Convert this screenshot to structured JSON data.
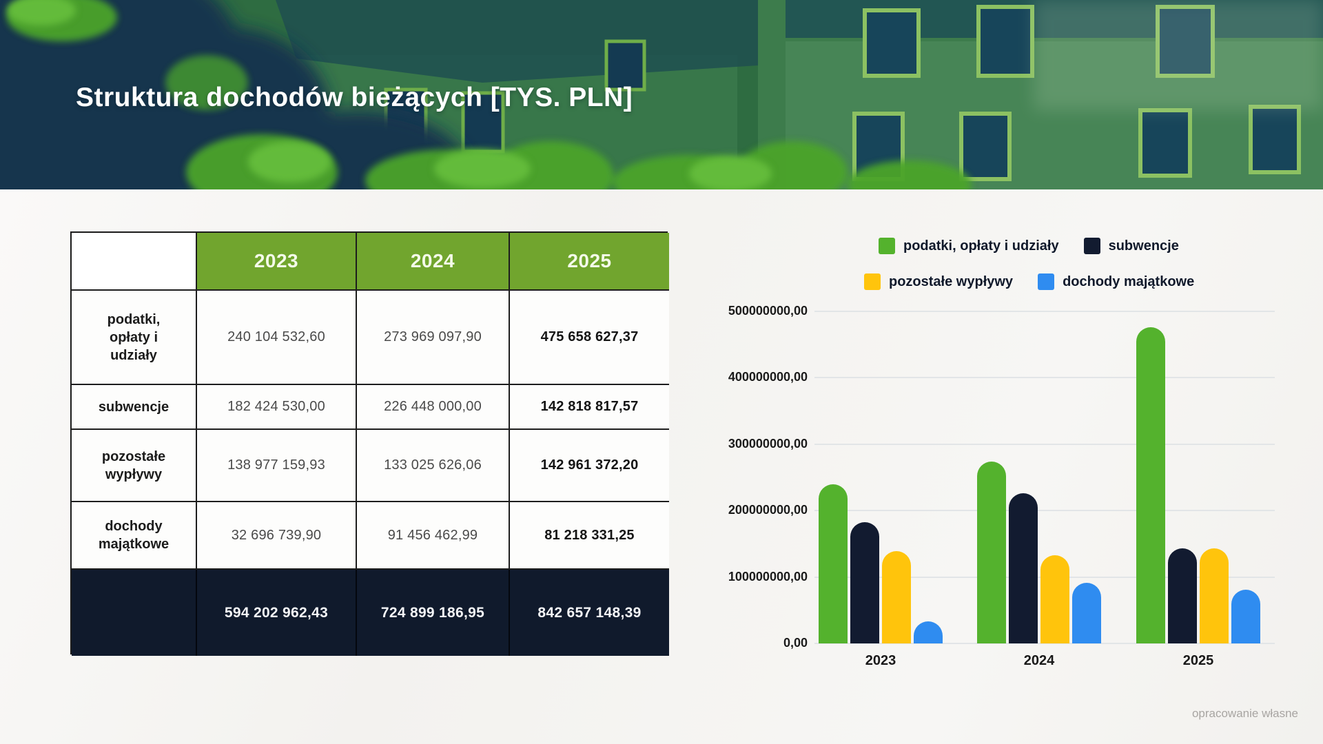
{
  "slide": {
    "title": "Struktura dochodów bieżących [TYS. PLN]",
    "credit": "opracowanie własne"
  },
  "table": {
    "corner": "",
    "col_headers": [
      "2023",
      "2024",
      "2025"
    ],
    "rows": [
      {
        "label": "podatki,\nopłaty i\nudziały",
        "values": [
          "240 104 532,60",
          "273 969 097,90",
          "475 658 627,37"
        ]
      },
      {
        "label": "subwencje",
        "values": [
          "182 424 530,00",
          "226 448 000,00",
          "142 818 817,57"
        ]
      },
      {
        "label": "pozostałe\nwypływy",
        "values": [
          "138 977 159,93",
          "133 025 626,06",
          "142 961 372,20"
        ]
      },
      {
        "label": "dochody\nmajątkowe",
        "values": [
          "32 696 739,90",
          "91 456 462,99",
          "81 218 331,25"
        ]
      }
    ],
    "total_row": {
      "label": "",
      "values": [
        "594 202 962,43",
        "724 899 186,95",
        "842 657 148,39"
      ]
    }
  },
  "chart_data": {
    "type": "bar",
    "title": "",
    "xlabel": "",
    "ylabel": "",
    "categories": [
      "2023",
      "2024",
      "2025"
    ],
    "series": [
      {
        "name": "podatki, opłaty i udziały",
        "color": "#54b22d",
        "values": [
          240104532.6,
          273969097.9,
          475658627.37
        ]
      },
      {
        "name": "subwencje",
        "color": "#121b30",
        "values": [
          182424530.0,
          226448000.0,
          142818817.57
        ]
      },
      {
        "name": "pozostałe wypływy",
        "color": "#ffc40c",
        "values": [
          138977159.93,
          133025626.06,
          142961372.2
        ]
      },
      {
        "name": "dochody majątkowe",
        "color": "#2f8cf0",
        "values": [
          32696739.9,
          91456462.99,
          81218331.25
        ]
      }
    ],
    "ylim": [
      0,
      500000000
    ],
    "ytick_labels": [
      "0,00",
      "100000000,00",
      "200000000,00",
      "300000000,00",
      "400000000,00",
      "500000000,00"
    ],
    "grid": true,
    "legend_position": "top-right"
  },
  "colors": {
    "header_green": "#71a52e",
    "total_navy": "#101a2c",
    "banner_base": "#2e6c41",
    "page_bg": "#f4f3f1"
  }
}
